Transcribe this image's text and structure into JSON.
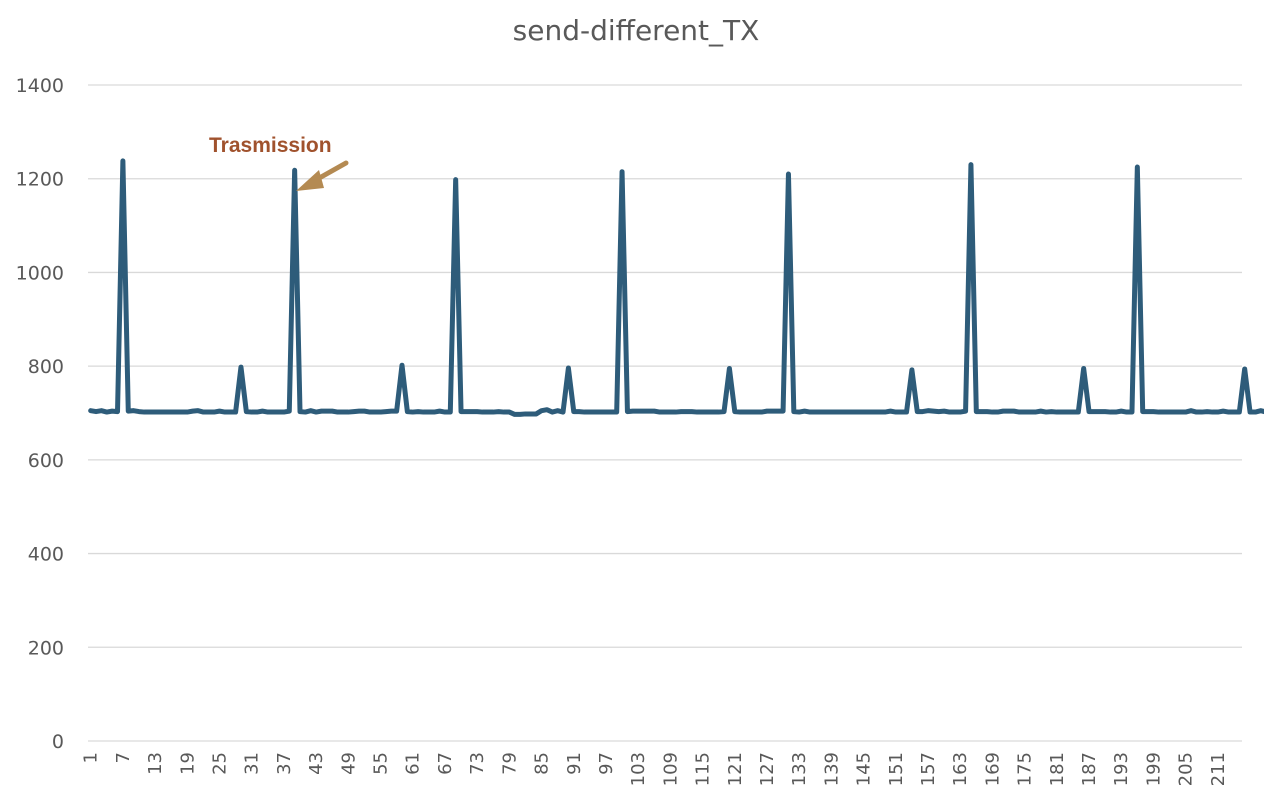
{
  "chart_data": {
    "type": "line",
    "title": "send-different_TX",
    "xlabel": "",
    "ylabel": "",
    "ylim": [
      0,
      1400
    ],
    "y_ticks": [
      0,
      200,
      400,
      600,
      800,
      1000,
      1200,
      1400
    ],
    "x_count": 215,
    "x_tick_start": 1,
    "x_tick_step": 6,
    "x_tick_labels": [
      "1",
      "7",
      "13",
      "19",
      "25",
      "31",
      "37",
      "43",
      "49",
      "55",
      "61",
      "67",
      "73",
      "79",
      "85",
      "91",
      "97",
      "103",
      "109",
      "115",
      "121",
      "127",
      "133",
      "139",
      "145",
      "151",
      "157",
      "163",
      "169",
      "175",
      "181",
      "187",
      "193",
      "199",
      "205",
      "211"
    ],
    "grid": true,
    "legend": "none",
    "series": [
      {
        "color": "#2e5c7a",
        "values": [
          705,
          703,
          705,
          702,
          704,
          703,
          1238,
          704,
          705,
          703,
          702,
          702,
          702,
          702,
          702,
          702,
          702,
          702,
          702,
          704,
          705,
          702,
          702,
          702,
          704,
          702,
          702,
          702,
          798,
          703,
          702,
          702,
          704,
          702,
          702,
          702,
          702,
          704,
          1218,
          703,
          702,
          705,
          702,
          704,
          704,
          704,
          702,
          702,
          702,
          703,
          704,
          704,
          702,
          702,
          702,
          703,
          704,
          704,
          802,
          703,
          702,
          703,
          702,
          702,
          702,
          704,
          702,
          702,
          1198,
          703,
          703,
          703,
          703,
          702,
          702,
          702,
          703,
          702,
          702,
          697,
          697,
          698,
          698,
          698,
          705,
          707,
          702,
          705,
          702,
          796,
          703,
          703,
          702,
          702,
          702,
          702,
          702,
          702,
          702,
          1215,
          703,
          704,
          704,
          704,
          704,
          704,
          702,
          702,
          702,
          702,
          703,
          703,
          703,
          702,
          702,
          702,
          702,
          702,
          703,
          795,
          703,
          702,
          702,
          702,
          702,
          702,
          704,
          704,
          704,
          704,
          1210,
          703,
          702,
          704,
          702,
          702,
          702,
          702,
          702,
          702,
          702,
          702,
          702,
          702,
          702,
          702,
          702,
          702,
          702,
          704,
          702,
          702,
          702,
          792,
          703,
          703,
          705,
          704,
          703,
          704,
          702,
          702,
          702,
          704,
          1230,
          703,
          703,
          703,
          702,
          702,
          704,
          704,
          704,
          702,
          702,
          702,
          702,
          704,
          702,
          703,
          702,
          702,
          702,
          702,
          702,
          795,
          703,
          703,
          703,
          703,
          702,
          702,
          704,
          702,
          702,
          1225,
          703,
          703,
          703,
          702,
          702,
          702,
          702,
          702,
          702,
          705,
          702,
          702,
          703,
          702,
          702,
          704,
          702,
          702,
          702,
          794,
          702,
          702,
          705,
          702,
          702,
          702,
          703
        ],
        "peaks_note": ""
      }
    ],
    "annotations": [
      {
        "text": "Trasmission",
        "color": "#a0522d",
        "arrow_color": "#b48a52",
        "points_to_x": 38
      }
    ]
  }
}
